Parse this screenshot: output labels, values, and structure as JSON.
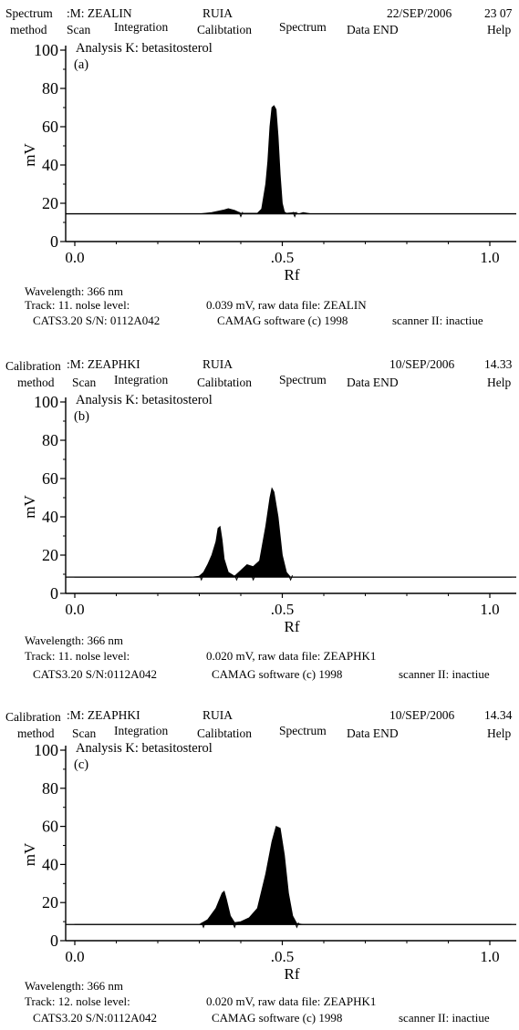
{
  "panels": [
    {
      "menu": {
        "method_top": "Spectrum",
        "method_bottom": "method",
        "scan": "Scan",
        "sample": ":M: ZEALIN",
        "integration": "Integration",
        "lab": "RUIA",
        "calibration": "Calibtation",
        "spectrum": "Spectrum",
        "data_end": "Data END",
        "date": "22/SEP/2006",
        "time": "23 07",
        "help": "Help"
      },
      "chart_data": {
        "type": "area",
        "title": "Analysis K: betasitosterol",
        "panel_label": "(a)",
        "xlabel": "Rf",
        "ylabel": "mV",
        "xlim": [
          0,
          1.05
        ],
        "ylim": [
          0,
          100
        ],
        "xticks": [
          "0.0",
          ".0.5",
          "1.0"
        ],
        "xtick_values": [
          0,
          0.5,
          1.0
        ],
        "yticks": [
          0,
          20,
          40,
          60,
          80,
          100
        ],
        "baseline_mv": 14.5,
        "peak_markers_rf": [
          0.4,
          0.53
        ],
        "series": [
          {
            "points": [
              [
                0,
                14.5
              ],
              [
                0.3,
                14.5
              ],
              [
                0.33,
                15.2
              ],
              [
                0.36,
                16.5
              ],
              [
                0.37,
                17.2
              ],
              [
                0.385,
                16.3
              ],
              [
                0.4,
                14.8
              ],
              [
                0.44,
                14.8
              ],
              [
                0.45,
                17
              ],
              [
                0.46,
                30
              ],
              [
                0.465,
                42
              ],
              [
                0.47,
                60
              ],
              [
                0.475,
                70
              ],
              [
                0.48,
                71
              ],
              [
                0.485,
                69
              ],
              [
                0.49,
                55
              ],
              [
                0.495,
                35
              ],
              [
                0.5,
                20
              ],
              [
                0.505,
                15.5
              ],
              [
                0.51,
                14.8
              ],
              [
                0.53,
                15.2
              ],
              [
                0.54,
                14.5
              ],
              [
                0.55,
                15.2
              ],
              [
                0.57,
                14.5
              ],
              [
                1.05,
                14.5
              ]
            ]
          }
        ]
      },
      "footer": {
        "wavelength": "Wavelength: 366 nm",
        "track": "Track: 11. nolse level:",
        "noise": "0.039 mV, raw data file: ZEALIN",
        "cats": "CATS3.20 S/N: 0112A042",
        "camag": "CAMAG software (c) 1998",
        "scanner": "scanner II: inactiue"
      }
    },
    {
      "menu": {
        "method_top": "Calibration",
        "method_bottom": "method",
        "scan": "Scan",
        "sample": ":M: ZEAPHKI",
        "integration": "Integration",
        "lab": "RUIA",
        "calibration": "Calibtation",
        "spectrum": "Spectrum",
        "data_end": "Data END",
        "date": "10/SEP/2006",
        "time": "14.33",
        "help": "Help"
      },
      "chart_data": {
        "type": "area",
        "title": "Analysis K: betasitosterol",
        "panel_label": "(b)",
        "xlabel": "Rf",
        "ylabel": "mV",
        "xlim": [
          0,
          1.05
        ],
        "ylim": [
          0,
          100
        ],
        "xticks": [
          "0.0",
          ".0.5",
          "1.0"
        ],
        "xtick_values": [
          0,
          0.5,
          1.0
        ],
        "yticks": [
          0,
          20,
          40,
          60,
          80,
          100
        ],
        "baseline_mv": 8.5,
        "peak_markers_rf": [
          0.305,
          0.39,
          0.43,
          0.52
        ],
        "series": [
          {
            "points": [
              [
                0,
                8.5
              ],
              [
                0.28,
                8.5
              ],
              [
                0.3,
                9
              ],
              [
                0.31,
                11
              ],
              [
                0.32,
                15
              ],
              [
                0.33,
                20
              ],
              [
                0.34,
                27
              ],
              [
                0.345,
                34
              ],
              [
                0.35,
                35
              ],
              [
                0.355,
                28
              ],
              [
                0.36,
                18
              ],
              [
                0.37,
                11
              ],
              [
                0.385,
                9
              ],
              [
                0.4,
                12
              ],
              [
                0.415,
                15
              ],
              [
                0.43,
                14
              ],
              [
                0.445,
                17
              ],
              [
                0.46,
                35
              ],
              [
                0.47,
                50
              ],
              [
                0.475,
                55
              ],
              [
                0.48,
                53
              ],
              [
                0.49,
                40
              ],
              [
                0.5,
                20
              ],
              [
                0.51,
                11
              ],
              [
                0.52,
                8.5
              ],
              [
                1.05,
                8.5
              ]
            ]
          }
        ]
      },
      "footer": {
        "wavelength": "Wavelength: 366 nm",
        "track": "Track: 11. nolse level:",
        "noise": "0.020 mV, raw data file: ZEAPHK1",
        "cats": "CATS3.20 S/N:0112A042",
        "camag": "CAMAG software (c) 1998",
        "scanner": "scanner II: inactiue"
      }
    },
    {
      "menu": {
        "method_top": "Calibration",
        "method_bottom": "method",
        "scan": "Scan",
        "sample": ":M: ZEAPHKI",
        "integration": "Integration",
        "lab": "RUIA",
        "calibration": "Calibtation",
        "spectrum": "Spectrum",
        "data_end": "Data END",
        "date": "10/SEP/2006",
        "time": "14.34",
        "help": "Help"
      },
      "chart_data": {
        "type": "area",
        "title": "Analysis K: betasitosterol",
        "panel_label": "(c)",
        "xlabel": "Rf",
        "ylabel": "mV",
        "xlim": [
          0,
          1.05
        ],
        "ylim": [
          0,
          100
        ],
        "xticks": [
          "0.0",
          ".0.5",
          "1.0"
        ],
        "xtick_values": [
          0,
          0.5,
          1.0
        ],
        "yticks": [
          0,
          20,
          40,
          60,
          80,
          100
        ],
        "baseline_mv": 8.5,
        "peak_markers_rf": [
          0.31,
          0.385,
          0.535
        ],
        "series": [
          {
            "points": [
              [
                0,
                8.5
              ],
              [
                0.3,
                8.5
              ],
              [
                0.32,
                11
              ],
              [
                0.34,
                17
              ],
              [
                0.355,
                25
              ],
              [
                0.36,
                26
              ],
              [
                0.365,
                22
              ],
              [
                0.375,
                13
              ],
              [
                0.385,
                9.5
              ],
              [
                0.4,
                10
              ],
              [
                0.42,
                12
              ],
              [
                0.44,
                17
              ],
              [
                0.46,
                35
              ],
              [
                0.475,
                52
              ],
              [
                0.485,
                60
              ],
              [
                0.495,
                59
              ],
              [
                0.505,
                45
              ],
              [
                0.515,
                25
              ],
              [
                0.525,
                13
              ],
              [
                0.535,
                9
              ],
              [
                0.55,
                8.5
              ],
              [
                1.05,
                8.5
              ]
            ]
          }
        ]
      },
      "footer": {
        "wavelength": "Wavelength: 366 nm",
        "track": "Track: 12. nolse level:",
        "noise": "0.020 mV, raw data file: ZEAPHK1",
        "cats": "CATS3.20 S/N:0112A042",
        "camag": "CAMAG software (c) 1998",
        "scanner": "scanner II: inactiue"
      }
    }
  ]
}
